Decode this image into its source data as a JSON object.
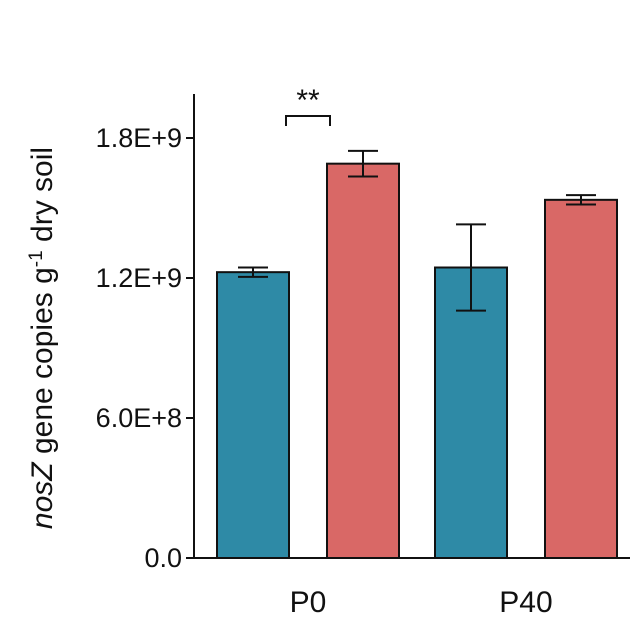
{
  "chart_data": {
    "type": "bar",
    "categories": [
      "P0",
      "P40"
    ],
    "ylabel_italic": "nosZ",
    "ylabel_rest": " gene copies g",
    "ylabel_sup": "-1",
    "ylabel_tail": " dry soil",
    "ylim": [
      0,
      2000000000
    ],
    "yticks": [
      {
        "value": 0,
        "label": "0.0"
      },
      {
        "value": 600000000,
        "label": "6.0E+8"
      },
      {
        "value": 1200000000,
        "label": "1.2E+9"
      },
      {
        "value": 1800000000,
        "label": "1.8E+9"
      }
    ],
    "colors": [
      "#2e8aa6",
      "#d96866"
    ],
    "series": [
      {
        "values": [
          1225000000,
          1245000000
        ],
        "errors": [
          20000000,
          185000000
        ]
      },
      {
        "values": [
          1690000000,
          1535000000
        ],
        "errors": [
          55000000,
          20000000
        ]
      }
    ],
    "annotations": [
      {
        "text": "**",
        "category": "P0"
      }
    ],
    "grid": false,
    "legend": "none"
  }
}
